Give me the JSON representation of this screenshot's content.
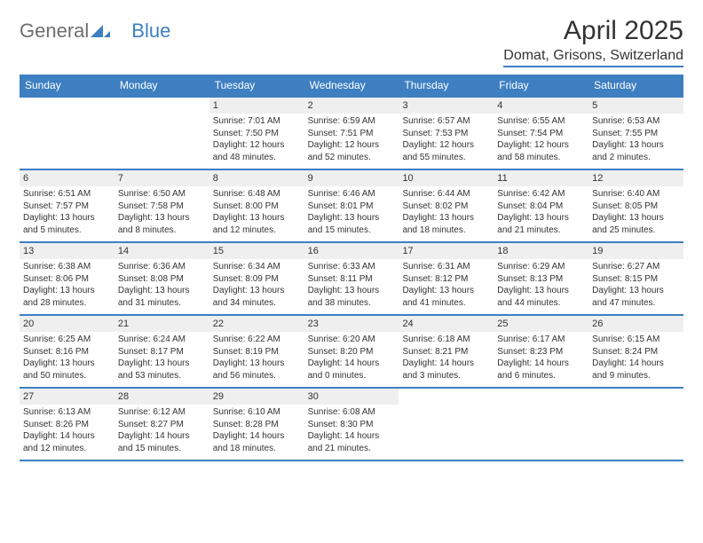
{
  "logo": {
    "part1": "General",
    "part2": "Blue"
  },
  "title": {
    "month": "April 2025",
    "location": "Domat, Grisons, Switzerland"
  },
  "colors": {
    "accent": "#3e7fc1",
    "daynum_bg": "#efefef",
    "text": "#333333",
    "logo_gray": "#6e6e6e",
    "white": "#ffffff"
  },
  "dayheads": [
    "Sunday",
    "Monday",
    "Tuesday",
    "Wednesday",
    "Thursday",
    "Friday",
    "Saturday"
  ],
  "weeks": [
    [
      {
        "blank": true
      },
      {
        "blank": true
      },
      {
        "n": "1",
        "sunrise": "Sunrise: 7:01 AM",
        "sunset": "Sunset: 7:50 PM",
        "daylight": "Daylight: 12 hours and 48 minutes."
      },
      {
        "n": "2",
        "sunrise": "Sunrise: 6:59 AM",
        "sunset": "Sunset: 7:51 PM",
        "daylight": "Daylight: 12 hours and 52 minutes."
      },
      {
        "n": "3",
        "sunrise": "Sunrise: 6:57 AM",
        "sunset": "Sunset: 7:53 PM",
        "daylight": "Daylight: 12 hours and 55 minutes."
      },
      {
        "n": "4",
        "sunrise": "Sunrise: 6:55 AM",
        "sunset": "Sunset: 7:54 PM",
        "daylight": "Daylight: 12 hours and 58 minutes."
      },
      {
        "n": "5",
        "sunrise": "Sunrise: 6:53 AM",
        "sunset": "Sunset: 7:55 PM",
        "daylight": "Daylight: 13 hours and 2 minutes."
      }
    ],
    [
      {
        "n": "6",
        "sunrise": "Sunrise: 6:51 AM",
        "sunset": "Sunset: 7:57 PM",
        "daylight": "Daylight: 13 hours and 5 minutes."
      },
      {
        "n": "7",
        "sunrise": "Sunrise: 6:50 AM",
        "sunset": "Sunset: 7:58 PM",
        "daylight": "Daylight: 13 hours and 8 minutes."
      },
      {
        "n": "8",
        "sunrise": "Sunrise: 6:48 AM",
        "sunset": "Sunset: 8:00 PM",
        "daylight": "Daylight: 13 hours and 12 minutes."
      },
      {
        "n": "9",
        "sunrise": "Sunrise: 6:46 AM",
        "sunset": "Sunset: 8:01 PM",
        "daylight": "Daylight: 13 hours and 15 minutes."
      },
      {
        "n": "10",
        "sunrise": "Sunrise: 6:44 AM",
        "sunset": "Sunset: 8:02 PM",
        "daylight": "Daylight: 13 hours and 18 minutes."
      },
      {
        "n": "11",
        "sunrise": "Sunrise: 6:42 AM",
        "sunset": "Sunset: 8:04 PM",
        "daylight": "Daylight: 13 hours and 21 minutes."
      },
      {
        "n": "12",
        "sunrise": "Sunrise: 6:40 AM",
        "sunset": "Sunset: 8:05 PM",
        "daylight": "Daylight: 13 hours and 25 minutes."
      }
    ],
    [
      {
        "n": "13",
        "sunrise": "Sunrise: 6:38 AM",
        "sunset": "Sunset: 8:06 PM",
        "daylight": "Daylight: 13 hours and 28 minutes."
      },
      {
        "n": "14",
        "sunrise": "Sunrise: 6:36 AM",
        "sunset": "Sunset: 8:08 PM",
        "daylight": "Daylight: 13 hours and 31 minutes."
      },
      {
        "n": "15",
        "sunrise": "Sunrise: 6:34 AM",
        "sunset": "Sunset: 8:09 PM",
        "daylight": "Daylight: 13 hours and 34 minutes."
      },
      {
        "n": "16",
        "sunrise": "Sunrise: 6:33 AM",
        "sunset": "Sunset: 8:11 PM",
        "daylight": "Daylight: 13 hours and 38 minutes."
      },
      {
        "n": "17",
        "sunrise": "Sunrise: 6:31 AM",
        "sunset": "Sunset: 8:12 PM",
        "daylight": "Daylight: 13 hours and 41 minutes."
      },
      {
        "n": "18",
        "sunrise": "Sunrise: 6:29 AM",
        "sunset": "Sunset: 8:13 PM",
        "daylight": "Daylight: 13 hours and 44 minutes."
      },
      {
        "n": "19",
        "sunrise": "Sunrise: 6:27 AM",
        "sunset": "Sunset: 8:15 PM",
        "daylight": "Daylight: 13 hours and 47 minutes."
      }
    ],
    [
      {
        "n": "20",
        "sunrise": "Sunrise: 6:25 AM",
        "sunset": "Sunset: 8:16 PM",
        "daylight": "Daylight: 13 hours and 50 minutes."
      },
      {
        "n": "21",
        "sunrise": "Sunrise: 6:24 AM",
        "sunset": "Sunset: 8:17 PM",
        "daylight": "Daylight: 13 hours and 53 minutes."
      },
      {
        "n": "22",
        "sunrise": "Sunrise: 6:22 AM",
        "sunset": "Sunset: 8:19 PM",
        "daylight": "Daylight: 13 hours and 56 minutes."
      },
      {
        "n": "23",
        "sunrise": "Sunrise: 6:20 AM",
        "sunset": "Sunset: 8:20 PM",
        "daylight": "Daylight: 14 hours and 0 minutes."
      },
      {
        "n": "24",
        "sunrise": "Sunrise: 6:18 AM",
        "sunset": "Sunset: 8:21 PM",
        "daylight": "Daylight: 14 hours and 3 minutes."
      },
      {
        "n": "25",
        "sunrise": "Sunrise: 6:17 AM",
        "sunset": "Sunset: 8:23 PM",
        "daylight": "Daylight: 14 hours and 6 minutes."
      },
      {
        "n": "26",
        "sunrise": "Sunrise: 6:15 AM",
        "sunset": "Sunset: 8:24 PM",
        "daylight": "Daylight: 14 hours and 9 minutes."
      }
    ],
    [
      {
        "n": "27",
        "sunrise": "Sunrise: 6:13 AM",
        "sunset": "Sunset: 8:26 PM",
        "daylight": "Daylight: 14 hours and 12 minutes."
      },
      {
        "n": "28",
        "sunrise": "Sunrise: 6:12 AM",
        "sunset": "Sunset: 8:27 PM",
        "daylight": "Daylight: 14 hours and 15 minutes."
      },
      {
        "n": "29",
        "sunrise": "Sunrise: 6:10 AM",
        "sunset": "Sunset: 8:28 PM",
        "daylight": "Daylight: 14 hours and 18 minutes."
      },
      {
        "n": "30",
        "sunrise": "Sunrise: 6:08 AM",
        "sunset": "Sunset: 8:30 PM",
        "daylight": "Daylight: 14 hours and 21 minutes."
      },
      {
        "blank": true
      },
      {
        "blank": true
      },
      {
        "blank": true
      }
    ]
  ]
}
